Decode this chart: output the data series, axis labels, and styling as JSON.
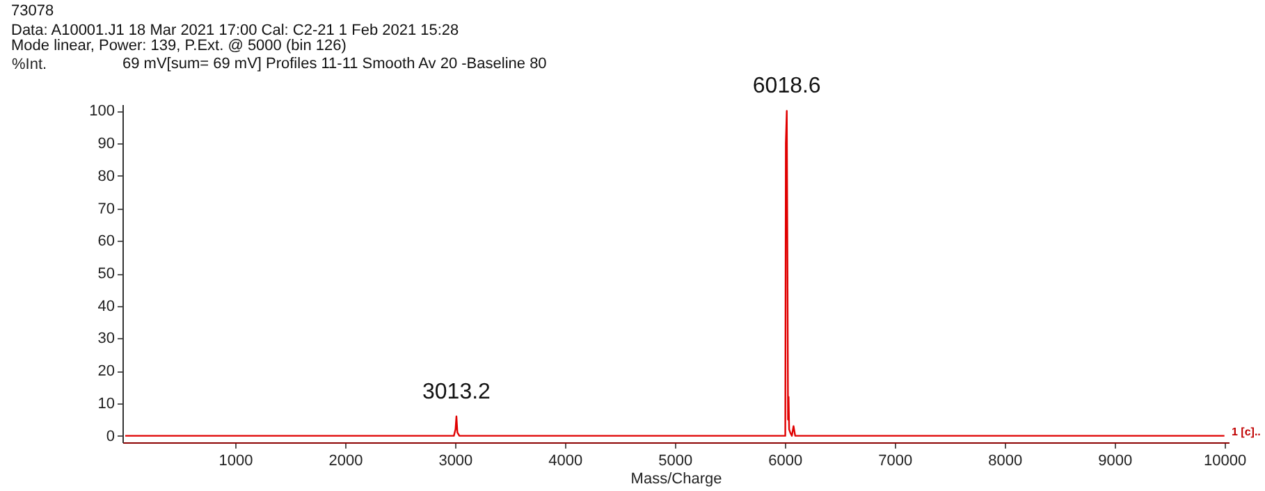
{
  "chart_data": {
    "type": "line",
    "title": "73078",
    "subtitle": "Data: A10001.J1 18 Mar 2021 17:00 Cal: C2-21 1 Feb 2021 15:28",
    "xlabel": "Mass/Charge",
    "ylabel": "%Int.",
    "annotations": [
      "Mode linear, Power: 139, P.Ext. @ 5000 (bin 126)",
      "69 mV[sum= 69 mV]  Profiles 11-11 Smooth Av 20 -Baseline 80",
      {
        "text": "3013.2",
        "x": 3013.2,
        "y": 6
      },
      {
        "text": "6018.6",
        "x": 6018.6,
        "y": 100
      },
      "1 [c].."
    ],
    "x": [
      0,
      2990,
      3005,
      3013.2,
      3022,
      3040,
      5990,
      6005,
      6010,
      6018.6,
      6025,
      6030,
      6035,
      6040,
      6050,
      6065,
      6080,
      6095,
      6120,
      10000
    ],
    "series": [
      {
        "color": "#e00000",
        "values": [
          0,
          0,
          2,
          6,
          1,
          0,
          0,
          0,
          90,
          100,
          51,
          5,
          12,
          2,
          1,
          0,
          3,
          0,
          0,
          0
        ]
      }
    ],
    "xlim": [
      -25,
      10040
    ],
    "xticks": [
      1000,
      2000,
      3000,
      4000,
      5000,
      6000,
      7000,
      8000,
      9000,
      10000
    ],
    "ylim": [
      -2,
      102
    ],
    "yticks": [
      0,
      10,
      20,
      30,
      40,
      50,
      60,
      70,
      80,
      90,
      100
    ],
    "grid": false,
    "legend": false,
    "marker": "none",
    "line_style": "solid"
  }
}
